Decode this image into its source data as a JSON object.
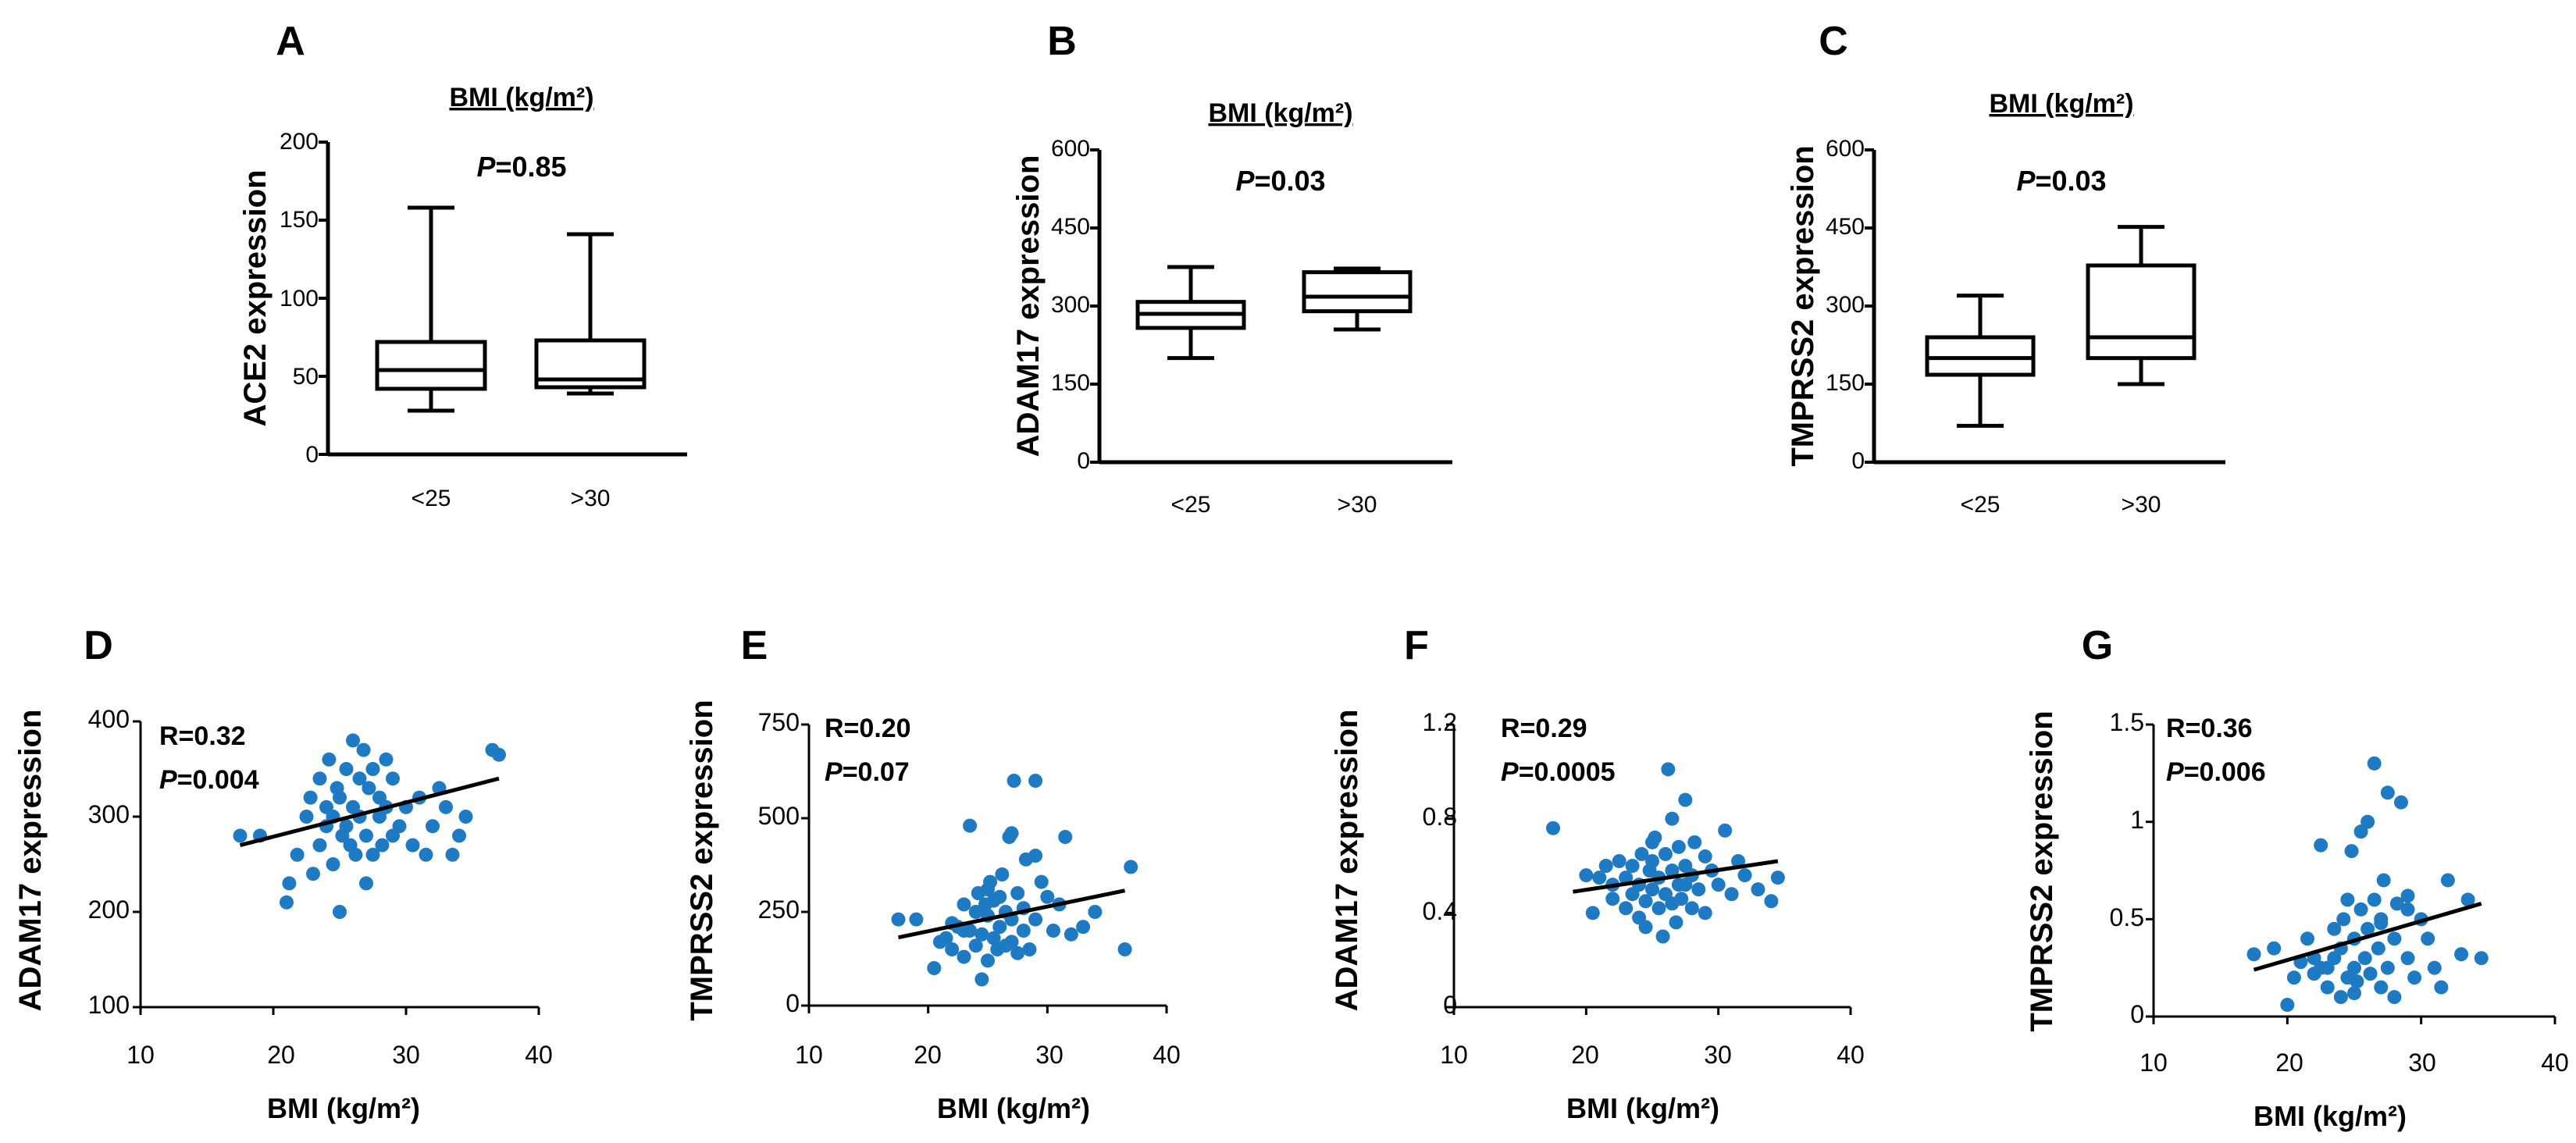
{
  "box_panels": [
    {
      "letter": "A",
      "title": "BMI (kg/m²)",
      "pvalue": "P=0.85",
      "ylabel": "ACE2 expression",
      "yticks": [
        "0",
        "50",
        "100",
        "150",
        "200"
      ],
      "categories": [
        "<25",
        ">30"
      ]
    },
    {
      "letter": "B",
      "title": "BMI (kg/m²)",
      "pvalue": "P=0.03",
      "ylabel": "ADAM17 expression",
      "yticks": [
        "0",
        "150",
        "300",
        "450",
        "600"
      ],
      "categories": [
        "<25",
        ">30"
      ]
    },
    {
      "letter": "C",
      "title": "BMI (kg/m²)",
      "pvalue": "P=0.03",
      "ylabel": "TMPRSS2 expression",
      "yticks": [
        "0",
        "150",
        "300",
        "450",
        "600"
      ],
      "categories": [
        "<25",
        ">30"
      ]
    }
  ],
  "scatter_panels": [
    {
      "letter": "D",
      "ylabel": "ADAM17 expression",
      "xlabel": "BMI (kg/m²)",
      "r_text": "R=0.32",
      "p_text": "P=0.004",
      "xticks": [
        "10",
        "20",
        "30",
        "40"
      ],
      "yticks": [
        "100",
        "200",
        "300",
        "400"
      ]
    },
    {
      "letter": "E",
      "ylabel": "TMPRSS2 expression",
      "xlabel": "BMI (kg/m²)",
      "r_text": "R=0.20",
      "p_text": "P=0.07",
      "xticks": [
        "10",
        "20",
        "30",
        "40"
      ],
      "yticks": [
        "0",
        "250",
        "500",
        "750"
      ]
    },
    {
      "letter": "F",
      "ylabel": "ADAM17 expression",
      "xlabel": "BMI (kg/m²)",
      "r_text": "R=0.29",
      "p_text": "P=0.0005",
      "xticks": [
        "10",
        "20",
        "30",
        "40"
      ],
      "yticks": [
        "0",
        "0.4",
        "0.8",
        "1.2"
      ]
    },
    {
      "letter": "G",
      "ylabel": "TMPRSS2 expression",
      "xlabel": "BMI (kg/m²)",
      "r_text": "R=0.36",
      "p_text": "P=0.006",
      "xticks": [
        "10",
        "20",
        "30",
        "40"
      ],
      "yticks": [
        "0",
        "0.5",
        "1",
        "1.5"
      ]
    }
  ],
  "chart_data": [
    {
      "type": "box",
      "panel": "A",
      "title": "BMI (kg/m²)",
      "ylabel": "ACE2 expression",
      "ylim": [
        0,
        200
      ],
      "categories": [
        "<25",
        ">30"
      ],
      "boxes": [
        {
          "min": 28,
          "q1": 42,
          "median": 54,
          "q3": 72,
          "max": 158
        },
        {
          "min": 39,
          "q1": 43,
          "median": 48,
          "q3": 73,
          "max": 141
        }
      ]
    },
    {
      "type": "box",
      "panel": "B",
      "title": "BMI (kg/m²)",
      "ylabel": "ADAM17 expression",
      "ylim": [
        0,
        600
      ],
      "categories": [
        "<25",
        ">30"
      ],
      "boxes": [
        {
          "min": 200,
          "q1": 258,
          "median": 285,
          "q3": 308,
          "max": 375
        },
        {
          "min": 255,
          "q1": 290,
          "median": 318,
          "q3": 365,
          "max": 372
        }
      ]
    },
    {
      "type": "box",
      "panel": "C",
      "title": "BMI (kg/m²)",
      "ylabel": "TMPRSS2 expression",
      "ylim": [
        0,
        600
      ],
      "categories": [
        "<25",
        ">30"
      ],
      "boxes": [
        {
          "min": 70,
          "q1": 168,
          "median": 200,
          "q3": 240,
          "max": 320
        },
        {
          "min": 150,
          "q1": 200,
          "median": 240,
          "q3": 378,
          "max": 452
        }
      ]
    },
    {
      "type": "scatter",
      "panel": "D",
      "xlabel": "BMI (kg/m²)",
      "ylabel": "ADAM17 expression",
      "xlim": [
        10,
        40
      ],
      "ylim": [
        100,
        400
      ],
      "fit": [
        [
          17.5,
          270
        ],
        [
          37,
          340
        ]
      ],
      "x": [
        17.5,
        19,
        21,
        21.2,
        21.8,
        22.5,
        22.8,
        23,
        23.5,
        23.5,
        24,
        24,
        24.2,
        24.5,
        24.5,
        24.8,
        25,
        25,
        25.2,
        25.5,
        25.5,
        25.8,
        26,
        26,
        26.2,
        26.5,
        26.5,
        26.8,
        27,
        27,
        27.2,
        27.5,
        27.5,
        28,
        28,
        28.2,
        28.5,
        28.5,
        29,
        29,
        29.5,
        30,
        30.5,
        31,
        31.5,
        32,
        32.5,
        33,
        33.5,
        34,
        34.5,
        36.5,
        37
      ],
      "y": [
        280,
        280,
        210,
        230,
        260,
        300,
        320,
        240,
        270,
        340,
        290,
        310,
        360,
        250,
        300,
        330,
        320,
        200,
        280,
        290,
        350,
        270,
        310,
        380,
        260,
        300,
        340,
        370,
        230,
        280,
        330,
        260,
        350,
        300,
        320,
        270,
        310,
        360,
        280,
        340,
        290,
        310,
        270,
        320,
        260,
        290,
        330,
        310,
        260,
        280,
        300,
        370,
        365
      ]
    },
    {
      "type": "scatter",
      "panel": "E",
      "xlabel": "BMI (kg/m²)",
      "ylabel": "TMPRSS2 expression",
      "xlim": [
        10,
        40
      ],
      "ylim": [
        0,
        750
      ],
      "fit": [
        [
          17.5,
          182
        ],
        [
          36.5,
          307
        ]
      ],
      "x": [
        17.5,
        19,
        20.5,
        21,
        21.5,
        22,
        22,
        22.5,
        23,
        23,
        23.5,
        23.5,
        24,
        24,
        24.2,
        24.5,
        24.5,
        24.8,
        25,
        25,
        25.2,
        25.5,
        25.5,
        25.8,
        26,
        26,
        26.2,
        26.5,
        26.5,
        26.8,
        27,
        27,
        27.2,
        27.5,
        27.5,
        28,
        28,
        28.2,
        28.5,
        29,
        29,
        29.5,
        30,
        30.5,
        31,
        31.5,
        32,
        33,
        34,
        36.5,
        37,
        23,
        25,
        27,
        29
      ],
      "y": [
        230,
        230,
        100,
        170,
        180,
        150,
        220,
        210,
        130,
        270,
        200,
        480,
        160,
        250,
        300,
        70,
        190,
        270,
        120,
        240,
        330,
        180,
        280,
        150,
        210,
        290,
        350,
        160,
        250,
        450,
        170,
        230,
        600,
        140,
        300,
        200,
        260,
        390,
        150,
        230,
        600,
        330,
        290,
        200,
        270,
        450,
        190,
        210,
        250,
        150,
        370,
        200,
        310,
        460,
        400
      ]
    },
    {
      "type": "scatter",
      "panel": "F",
      "xlabel": "BMI (kg/m²)",
      "ylabel": "ADAM17 expression",
      "xlim": [
        10,
        40
      ],
      "ylim": [
        0,
        1.2
      ],
      "fit": [
        [
          19,
          0.49
        ],
        [
          34.5,
          0.62
        ]
      ],
      "x": [
        17.5,
        20,
        20.5,
        21,
        21.5,
        22,
        22,
        22.5,
        23,
        23,
        23.5,
        23.5,
        24,
        24,
        24.2,
        24.5,
        24.5,
        24.8,
        25,
        25,
        25.2,
        25.5,
        25.5,
        25.8,
        26,
        26,
        26.2,
        26.5,
        26.5,
        26.8,
        27,
        27,
        27.2,
        27.5,
        27.5,
        28,
        28,
        28.2,
        28.5,
        29,
        29,
        29.5,
        30,
        30.5,
        31,
        31.5,
        32,
        33,
        34,
        34.5,
        26.5,
        25,
        27.5
      ],
      "y": [
        0.76,
        0.56,
        0.4,
        0.55,
        0.6,
        0.46,
        0.52,
        0.62,
        0.42,
        0.55,
        0.48,
        0.6,
        0.38,
        0.52,
        0.65,
        0.34,
        0.45,
        0.58,
        0.5,
        0.62,
        0.72,
        0.42,
        0.55,
        0.3,
        0.48,
        0.65,
        1.01,
        0.44,
        0.58,
        0.36,
        0.52,
        0.68,
        0.46,
        0.6,
        0.88,
        0.42,
        0.56,
        0.7,
        0.5,
        0.64,
        0.4,
        0.58,
        0.52,
        0.75,
        0.48,
        0.62,
        0.56,
        0.5,
        0.45,
        0.55,
        0.8,
        0.7,
        0.52
      ]
    },
    {
      "type": "scatter",
      "panel": "G",
      "xlabel": "BMI (kg/m²)",
      "ylabel": "TMPRSS2 expression",
      "xlim": [
        10,
        40
      ],
      "ylim": [
        0,
        1.5
      ],
      "fit": [
        [
          17.5,
          0.24
        ],
        [
          34.5,
          0.58
        ]
      ],
      "x": [
        17.5,
        19,
        20,
        20.5,
        21,
        21.5,
        22,
        22,
        22.5,
        23,
        23,
        23.5,
        23.5,
        24,
        24,
        24.2,
        24.5,
        24.5,
        24.8,
        25,
        25,
        25.2,
        25.5,
        25.5,
        25.8,
        26,
        26,
        26.2,
        26.5,
        26.5,
        26.8,
        27,
        27,
        27.2,
        27.5,
        27.5,
        28,
        28,
        28.2,
        28.5,
        29,
        29,
        29.5,
        30,
        30.5,
        31,
        31.5,
        32,
        33,
        33.5,
        34.5,
        22.5,
        25,
        27,
        29
      ],
      "y": [
        0.32,
        0.35,
        0.06,
        0.2,
        0.28,
        0.4,
        0.22,
        0.3,
        0.88,
        0.15,
        0.25,
        0.3,
        0.45,
        0.1,
        0.35,
        0.5,
        0.2,
        0.6,
        0.85,
        0.25,
        0.4,
        0.18,
        0.55,
        0.95,
        0.3,
        0.45,
        1.0,
        0.22,
        0.6,
        1.3,
        0.35,
        0.15,
        0.5,
        0.7,
        0.25,
        1.15,
        0.4,
        0.1,
        0.58,
        1.1,
        0.3,
        0.62,
        0.2,
        0.5,
        0.4,
        0.25,
        0.15,
        0.7,
        0.32,
        0.6,
        0.3,
        0.25,
        0.12,
        0.48,
        0.55
      ]
    }
  ]
}
